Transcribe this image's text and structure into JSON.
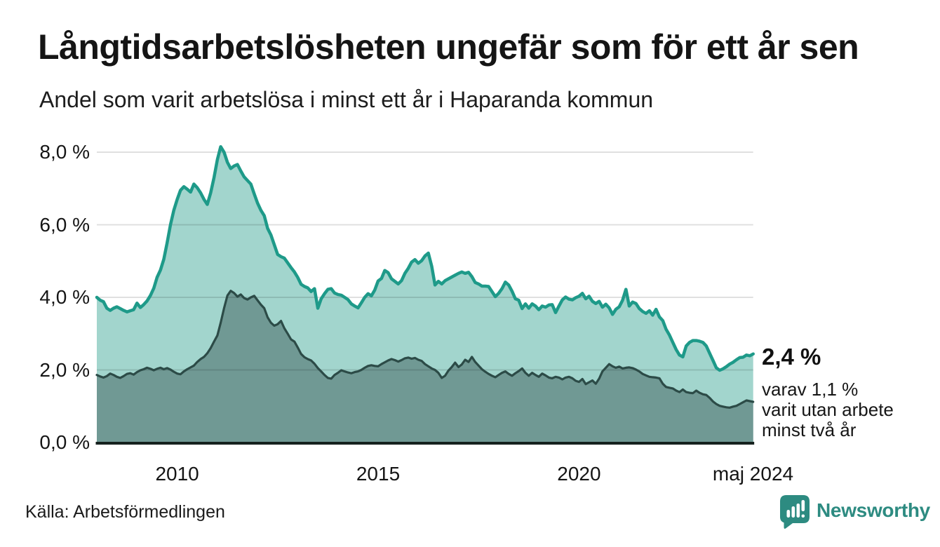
{
  "header": {
    "title": "Långtidsarbetslösheten ungefär som för ett år sen",
    "subtitle": "Andel som varit arbetslösa i minst ett år i Haparanda kommun"
  },
  "chart_data": {
    "type": "area",
    "title": "Långtidsarbetslösheten ungefär som för ett år sen",
    "subtitle": "Andel som varit arbetslösa i minst ett år i Haparanda kommun",
    "unit": "%",
    "grid": true,
    "x_axis": {
      "start_year": 2008.0,
      "interval_years": 0.083333,
      "end_label": "maj 2024",
      "ticks": [
        {
          "label": "2010",
          "year": 2010.0
        },
        {
          "label": "2015",
          "year": 2015.0
        },
        {
          "label": "2020",
          "year": 2020.0
        },
        {
          "label": "maj 2024",
          "year": 2024.33
        }
      ]
    },
    "y_axis": {
      "min": 0,
      "max": 8.5,
      "ticks": [
        {
          "label": "8,0 %",
          "value": 8
        },
        {
          "label": "6,0 %",
          "value": 6
        },
        {
          "label": "4,0 %",
          "value": 4
        },
        {
          "label": "2,0 %",
          "value": 2
        },
        {
          "label": "0,0 %",
          "value": 0
        }
      ]
    },
    "series": [
      {
        "name": "Arbetslösa minst ett år",
        "line_color": "#1e9a89",
        "fill_color": "#a2d5cd",
        "values": [
          4.0,
          3.92,
          3.88,
          3.7,
          3.64,
          3.7,
          3.74,
          3.69,
          3.64,
          3.6,
          3.63,
          3.66,
          3.84,
          3.72,
          3.8,
          3.9,
          4.05,
          4.25,
          4.55,
          4.75,
          5.05,
          5.5,
          6.0,
          6.4,
          6.7,
          6.95,
          7.05,
          6.98,
          6.9,
          7.12,
          7.02,
          6.88,
          6.7,
          6.56,
          6.88,
          7.3,
          7.8,
          8.15,
          8.0,
          7.72,
          7.55,
          7.62,
          7.66,
          7.48,
          7.32,
          7.22,
          7.12,
          6.85,
          6.6,
          6.4,
          6.25,
          5.9,
          5.72,
          5.45,
          5.18,
          5.12,
          5.08,
          4.95,
          4.82,
          4.7,
          4.55,
          4.36,
          4.3,
          4.26,
          4.16,
          4.24,
          3.7,
          3.96,
          4.1,
          4.22,
          4.24,
          4.12,
          4.08,
          4.06,
          4.0,
          3.94,
          3.82,
          3.76,
          3.71,
          3.85,
          4.0,
          4.1,
          4.04,
          4.2,
          4.45,
          4.52,
          4.74,
          4.68,
          4.51,
          4.44,
          4.37,
          4.46,
          4.66,
          4.8,
          4.97,
          5.04,
          4.94,
          5.01,
          5.14,
          5.22,
          4.86,
          4.34,
          4.44,
          4.37,
          4.46,
          4.51,
          4.56,
          4.61,
          4.66,
          4.7,
          4.66,
          4.69,
          4.57,
          4.41,
          4.37,
          4.31,
          4.31,
          4.3,
          4.16,
          4.02,
          4.11,
          4.24,
          4.42,
          4.34,
          4.17,
          3.96,
          3.92,
          3.69,
          3.82,
          3.7,
          3.82,
          3.76,
          3.66,
          3.76,
          3.73,
          3.79,
          3.8,
          3.58,
          3.76,
          3.93,
          4.01,
          3.95,
          3.93,
          3.99,
          4.03,
          4.11,
          3.96,
          4.03,
          3.89,
          3.83,
          3.89,
          3.73,
          3.81,
          3.71,
          3.53,
          3.67,
          3.74,
          3.92,
          4.22,
          3.76,
          3.87,
          3.83,
          3.69,
          3.61,
          3.56,
          3.63,
          3.51,
          3.67,
          3.46,
          3.36,
          3.12,
          2.96,
          2.76,
          2.56,
          2.41,
          2.36,
          2.66,
          2.76,
          2.81,
          2.81,
          2.79,
          2.76,
          2.66,
          2.46,
          2.26,
          2.06,
          1.99,
          2.03,
          2.09,
          2.16,
          2.21,
          2.28,
          2.34,
          2.35,
          2.41,
          2.39,
          2.44
        ]
      },
      {
        "name": "Varav utan arbete minst två år",
        "line_color": "#2c4b47",
        "fill_color": "#709994",
        "values": [
          1.86,
          1.82,
          1.79,
          1.83,
          1.9,
          1.86,
          1.81,
          1.78,
          1.83,
          1.89,
          1.91,
          1.87,
          1.94,
          1.99,
          2.02,
          2.06,
          2.03,
          1.99,
          2.03,
          2.06,
          2.02,
          2.05,
          2.01,
          1.95,
          1.9,
          1.88,
          1.96,
          2.02,
          2.07,
          2.12,
          2.22,
          2.3,
          2.36,
          2.46,
          2.6,
          2.78,
          2.95,
          3.3,
          3.7,
          4.05,
          4.18,
          4.12,
          4.02,
          4.08,
          3.98,
          3.94,
          4.0,
          4.04,
          3.92,
          3.8,
          3.7,
          3.45,
          3.3,
          3.22,
          3.26,
          3.35,
          3.15,
          3.0,
          2.84,
          2.78,
          2.62,
          2.44,
          2.35,
          2.3,
          2.26,
          2.17,
          2.05,
          1.96,
          1.86,
          1.78,
          1.76,
          1.86,
          1.92,
          1.99,
          1.96,
          1.93,
          1.91,
          1.94,
          1.96,
          2.0,
          2.06,
          2.11,
          2.13,
          2.11,
          2.1,
          2.16,
          2.21,
          2.26,
          2.3,
          2.27,
          2.23,
          2.27,
          2.32,
          2.34,
          2.31,
          2.33,
          2.28,
          2.25,
          2.16,
          2.1,
          2.04,
          2.0,
          1.92,
          1.78,
          1.84,
          1.98,
          2.08,
          2.2,
          2.08,
          2.15,
          2.28,
          2.22,
          2.36,
          2.22,
          2.12,
          2.02,
          1.95,
          1.89,
          1.84,
          1.8,
          1.86,
          1.92,
          1.96,
          1.89,
          1.84,
          1.91,
          1.97,
          2.04,
          1.92,
          1.84,
          1.92,
          1.86,
          1.81,
          1.9,
          1.85,
          1.79,
          1.77,
          1.81,
          1.79,
          1.74,
          1.79,
          1.81,
          1.77,
          1.7,
          1.67,
          1.75,
          1.61,
          1.66,
          1.71,
          1.62,
          1.76,
          1.96,
          2.06,
          2.16,
          2.1,
          2.06,
          2.09,
          2.04,
          2.06,
          2.07,
          2.05,
          2.01,
          1.96,
          1.89,
          1.85,
          1.81,
          1.8,
          1.79,
          1.77,
          1.62,
          1.53,
          1.51,
          1.49,
          1.43,
          1.39,
          1.46,
          1.39,
          1.37,
          1.36,
          1.43,
          1.37,
          1.33,
          1.31,
          1.23,
          1.13,
          1.06,
          1.01,
          0.99,
          0.97,
          0.96,
          0.99,
          1.01,
          1.06,
          1.11,
          1.16,
          1.14,
          1.12
        ]
      }
    ],
    "annotation": {
      "value": "2,4 %",
      "detail": "varav 1,1 %\nvarit utan arbete\nminst två år"
    }
  },
  "footer": {
    "source": "Källa: Arbetsförmedlingen",
    "brand": "Newsworthy",
    "brand_color": "#2d8b81"
  },
  "colors": {
    "axis_line": "#16211e",
    "gridline": "rgba(0,0,0,0.12)",
    "text": "#151515",
    "accent_teal": "#1e9a89",
    "light_fill": "#a2d5cd",
    "dark_fill": "#709994",
    "dark_line": "#2c4b47"
  }
}
